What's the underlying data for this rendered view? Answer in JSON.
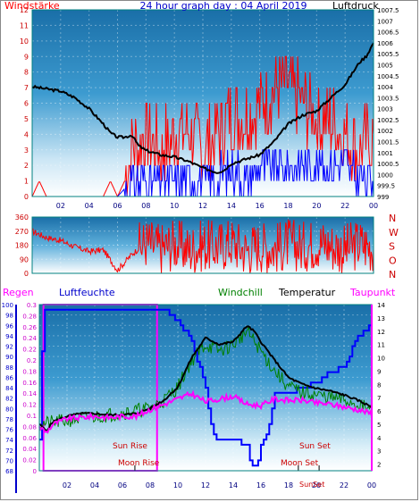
{
  "colors": {
    "wind": "#ff0000",
    "gust": "#0000ff",
    "pressure": "#000000",
    "direction": "#ff0000",
    "rain": "#ff00ff",
    "humidity": "#0000ff",
    "windchill": "#008000",
    "temperature": "#000000",
    "dewpoint": "#ff00ff",
    "frame": "#008080"
  },
  "chart_data": [
    {
      "type": "line",
      "title": "24 hour graph day : 04 April 2019",
      "ylabel_left": "Windstärke",
      "ylabel_right": "Luftdruck",
      "y_left_ticks": [
        "12",
        "11",
        "10",
        "9",
        "8",
        "7",
        "6",
        "5",
        "4",
        "3",
        "2",
        "1",
        "0"
      ],
      "y_right_ticks": [
        "1007.5",
        "1007",
        "1006.5",
        "1006",
        "1005.5",
        "1005",
        "1004.5",
        "1004",
        "1003.5",
        "1003",
        "1002.5",
        "1002",
        "1001.5",
        "1001",
        "1000.5",
        "1000",
        "999.5",
        "999"
      ],
      "x_ticks": [
        "02",
        "04",
        "06",
        "08",
        "10",
        "12",
        "14",
        "16",
        "18",
        "20",
        "22",
        "00"
      ],
      "ylim_left": [
        0,
        12
      ],
      "ylim_right": [
        999,
        1007.5
      ],
      "xlim": [
        0,
        24
      ],
      "series": [
        {
          "name": "Luftdruck",
          "axis": "right",
          "x": [
            0,
            1,
            2,
            3,
            4,
            5,
            5.5,
            6,
            6.5,
            7,
            7.5,
            8,
            9,
            10,
            11,
            12,
            12.5,
            13,
            13.5,
            14,
            15,
            16,
            17,
            18,
            19,
            20,
            21,
            22,
            23,
            23.5,
            24
          ],
          "y": [
            1004,
            1003.9,
            1003.8,
            1003.5,
            1003,
            1002.3,
            1001.9,
            1001.7,
            1001.7,
            1001.8,
            1001.3,
            1001.1,
            1000.9,
            1000.8,
            1000.6,
            1000.3,
            1000.2,
            1000.1,
            1000.2,
            1000.5,
            1000.7,
            1000.9,
            1001.5,
            1002.3,
            1002.7,
            1002.9,
            1003.5,
            1004.1,
            1005.1,
            1005.4,
            1006
          ]
        },
        {
          "name": "",
          "axis": "left",
          "x": [
            0,
            0.5,
            1,
            2,
            3,
            4,
            5,
            5.5,
            6,
            6.5,
            7,
            8,
            9,
            10,
            11,
            12,
            13,
            14,
            15,
            16,
            17,
            18,
            19,
            20,
            21,
            22,
            23,
            24
          ],
          "y": [
            0,
            1,
            0,
            0,
            0,
            0,
            0,
            1,
            0,
            1,
            3,
            4,
            3,
            4,
            4,
            3,
            4,
            5,
            5,
            6,
            7,
            7,
            6,
            5,
            5,
            4,
            3,
            4
          ]
        },
        {
          "name": "",
          "axis": "left",
          "x": [
            0,
            6,
            7,
            8,
            9,
            10,
            11,
            12,
            13,
            14,
            15,
            16,
            17,
            18,
            19,
            20,
            21,
            22,
            23,
            24
          ],
          "y": [
            0,
            0,
            1,
            1,
            1,
            1,
            1,
            1,
            1,
            2,
            1,
            2,
            2,
            2,
            2,
            2,
            2,
            2,
            1,
            1
          ]
        }
      ]
    },
    {
      "type": "line",
      "ylabel_right": [
        "N",
        "W",
        "S",
        "O",
        "N"
      ],
      "y_left_ticks": [
        "360",
        "270",
        "180",
        "90",
        "0"
      ],
      "ylim": [
        0,
        360
      ],
      "xlim": [
        0,
        24
      ],
      "series": [
        {
          "name": "",
          "x": [
            0,
            1,
            2,
            3,
            4,
            5,
            6,
            7,
            8,
            9,
            10,
            11,
            12,
            13,
            14,
            15,
            16,
            17,
            18,
            19,
            20,
            21,
            22,
            23,
            24
          ],
          "y": [
            270,
            230,
            210,
            170,
            140,
            150,
            20,
            120,
            200,
            160,
            190,
            150,
            180,
            170,
            200,
            150,
            180,
            160,
            190,
            170,
            200,
            180,
            150,
            190,
            170
          ]
        }
      ]
    },
    {
      "type": "line",
      "labels": {
        "rain": "Regen",
        "humidity": "Luftfeuchte",
        "windchill": "Windchill",
        "temperature": "Temperatur",
        "dewpoint": "Taupunkt"
      },
      "y_hum_ticks": [
        "100",
        "98",
        "96",
        "94",
        "92",
        "90",
        "88",
        "86",
        "84",
        "82",
        "80",
        "78",
        "76",
        "74",
        "72",
        "70",
        "68"
      ],
      "y_rain_ticks": [
        "0.3",
        "0.28",
        "0.26",
        "0.24",
        "0.22",
        "0.2",
        "0.18",
        "0.16",
        "0.14",
        "0.12",
        "0.1",
        "0.08",
        "0.06",
        "0.04",
        "0.02",
        "0"
      ],
      "y_temp_ticks": [
        "14",
        "13",
        "12",
        "11",
        "10",
        "9",
        "8",
        "7",
        "6",
        "5",
        "4",
        "3",
        "2"
      ],
      "x_ticks": [
        "02",
        "04",
        "06",
        "08",
        "10",
        "12",
        "14",
        "16",
        "18",
        "20",
        "22",
        "00"
      ],
      "ylim_hum": [
        68,
        100
      ],
      "ylim_temp": [
        1.5,
        14
      ],
      "xlim": [
        0,
        24
      ],
      "series": [
        {
          "name": "Luftfeuchte",
          "x": [
            0,
            0.3,
            4,
            8,
            8.6,
            9,
            10,
            11,
            12,
            12.5,
            13,
            14,
            15,
            15.3,
            15.7,
            16,
            16.5,
            17,
            18,
            19,
            20,
            21,
            22,
            23,
            24
          ],
          "y": [
            74,
            99,
            99,
            99,
            99,
            99,
            97,
            93,
            84,
            75,
            74,
            74,
            73,
            69,
            69,
            73,
            76,
            83,
            83,
            84,
            85,
            87,
            88,
            94,
            96
          ]
        },
        {
          "name": "Temperatur",
          "x": [
            0,
            0.5,
            1,
            2,
            3,
            4,
            5,
            6,
            7,
            8,
            9,
            10,
            11,
            12,
            13,
            14,
            15,
            15.5,
            16,
            17,
            18,
            19,
            20,
            21,
            22,
            23,
            24
          ],
          "y": [
            5,
            4.5,
            5.2,
            5.6,
            5.8,
            5.8,
            5.7,
            5.7,
            5.8,
            6.2,
            6.8,
            7.8,
            10,
            11.5,
            11,
            11.2,
            12.4,
            12,
            11.2,
            9.8,
            8.5,
            8.0,
            7.7,
            7.5,
            7.2,
            6.8,
            6.3
          ]
        },
        {
          "name": "Windchill",
          "x": [
            0,
            5,
            8,
            9,
            10,
            11,
            12,
            13,
            14,
            15,
            16,
            17,
            18,
            19,
            20,
            21,
            22,
            23,
            24
          ],
          "y": [
            5,
            5.7,
            6.2,
            6.8,
            7.8,
            9.8,
            11,
            10.5,
            11,
            12,
            10.5,
            9,
            7.8,
            7.4,
            7.2,
            7,
            6.8,
            6.5,
            6
          ]
        },
        {
          "name": "Taupunkt",
          "x": [
            0,
            0.5,
            1,
            2,
            3,
            4,
            5,
            6,
            7,
            8,
            9,
            10,
            11,
            12,
            13,
            14,
            15,
            16,
            17,
            18,
            19,
            20,
            21,
            22,
            23,
            24
          ],
          "y": [
            4.8,
            4.4,
            5,
            5.4,
            5.5,
            5.6,
            5.5,
            5.6,
            5.6,
            6.1,
            6.5,
            6.9,
            7.3,
            6.7,
            6.9,
            7.1,
            6.5,
            6.4,
            6.9,
            6.8,
            6.8,
            6.6,
            6.5,
            6.3,
            6.1,
            5.8
          ]
        }
      ],
      "annotations": {
        "sun_rise": "Sun Rise",
        "moon_rise": "Moon Rise",
        "sun_set": "Sun Set",
        "moon_set": "Moon Set",
        "sun_set_2": "SunSet"
      },
      "events": {
        "sun_rise": 6.9,
        "moon_rise": 6.6,
        "sun_set": 20.2,
        "moon_set": 18.7,
        "rain_box": [
          0.3,
          8.5
        ]
      }
    }
  ]
}
